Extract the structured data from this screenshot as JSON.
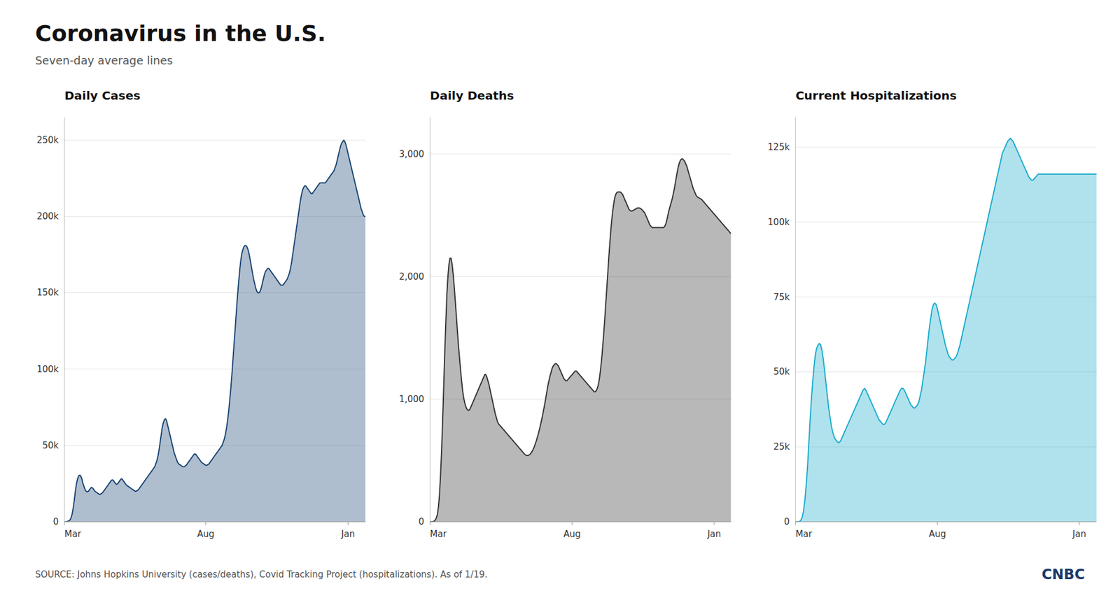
{
  "title": "Coronavirus in the U.S.",
  "subtitle": "Seven-day average lines",
  "source": "SOURCE: Johns Hopkins University (cases/deaths), Covid Tracking Project (hospitalizations). As of 1/19.",
  "logo": "CNBC",
  "chart_data": [
    {
      "type": "area",
      "title": "Daily Cases",
      "color": "#1a4472",
      "grid": true,
      "xlim": [
        0,
        277
      ],
      "xticks": [
        {
          "value": 0,
          "label": "Mar"
        },
        {
          "value": 130,
          "label": "Aug"
        },
        {
          "value": 261,
          "label": "Jan"
        }
      ],
      "ylim": [
        0,
        265000
      ],
      "yticks": [
        0,
        {
          "value": 50000,
          "label": "50k"
        },
        {
          "value": 100000,
          "label": "100k"
        },
        {
          "value": 150000,
          "label": "150k"
        },
        {
          "value": 200000,
          "label": "200k"
        },
        {
          "value": 250000,
          "label": "250k"
        }
      ],
      "values": [
        0,
        0,
        100,
        300,
        600,
        1200,
        2500,
        5000,
        9000,
        14000,
        20000,
        25000,
        28000,
        30000,
        30500,
        30000,
        28000,
        25000,
        23000,
        21000,
        20000,
        19500,
        20000,
        21000,
        22000,
        22500,
        22000,
        21000,
        20000,
        19500,
        19000,
        18500,
        18000,
        18000,
        18500,
        19000,
        20000,
        21000,
        22000,
        23000,
        24000,
        25000,
        26000,
        27000,
        27500,
        27000,
        26000,
        25000,
        24500,
        25000,
        26000,
        27000,
        28000,
        28000,
        27000,
        26000,
        25000,
        24000,
        23500,
        23000,
        22500,
        22000,
        21500,
        21000,
        20500,
        20000,
        20000,
        20500,
        21000,
        22000,
        23000,
        24000,
        25000,
        26000,
        27000,
        28000,
        29000,
        30000,
        31000,
        32000,
        33000,
        34000,
        35000,
        36000,
        38000,
        40000,
        43000,
        47000,
        52000,
        57000,
        62000,
        65000,
        67000,
        67500,
        66000,
        63000,
        60000,
        57000,
        54000,
        51000,
        48000,
        45000,
        43000,
        41000,
        39000,
        38000,
        37500,
        37000,
        36500,
        36000,
        36000,
        36500,
        37000,
        38000,
        39000,
        40000,
        41000,
        42000,
        43000,
        44000,
        44500,
        44000,
        43000,
        42000,
        41000,
        40000,
        39000,
        38500,
        38000,
        37500,
        37000,
        37000,
        37500,
        38000,
        39000,
        40000,
        41000,
        42000,
        43000,
        44000,
        45000,
        46000,
        47000,
        48000,
        49000,
        50000,
        52000,
        54000,
        57000,
        61000,
        66000,
        72000,
        79000,
        87000,
        96000,
        106000,
        116000,
        126000,
        136000,
        146000,
        155000,
        163000,
        170000,
        175000,
        178000,
        180000,
        181000,
        181000,
        180000,
        178000,
        175000,
        171000,
        167000,
        163000,
        159000,
        156000,
        153000,
        151000,
        150000,
        150000,
        151000,
        153000,
        156000,
        159000,
        162000,
        164000,
        165000,
        166000,
        166000,
        165000,
        164000,
        163000,
        162000,
        161000,
        160000,
        159000,
        158000,
        157000,
        156000,
        155000,
        155000,
        155000,
        156000,
        157000,
        158000,
        159000,
        161000,
        163000,
        166000,
        170000,
        175000,
        180000,
        185000,
        190000,
        195000,
        200000,
        205000,
        210000,
        214000,
        217000,
        219000,
        220000,
        220000,
        219000,
        218000,
        217000,
        216000,
        215000,
        215000,
        216000,
        217000,
        218000,
        219000,
        220000,
        221000,
        222000,
        222000,
        222000,
        222000,
        222000,
        222000,
        223000,
        224000,
        225000,
        226000,
        227000,
        228000,
        229000,
        230000,
        232000,
        234000,
        237000,
        240000,
        243000,
        246000,
        248000,
        249000,
        250000,
        249000,
        247000,
        244000,
        241000,
        238000,
        235000,
        232000,
        229000,
        226000,
        223000,
        220000,
        217000,
        214000,
        211000,
        208000,
        205000,
        203000,
        201000,
        200000,
        200000
      ]
    },
    {
      "type": "area",
      "title": "Daily Deaths",
      "color": "#333333",
      "grid": true,
      "xlim": [
        0,
        286
      ],
      "xticks": [
        {
          "value": 0,
          "label": "Mar"
        },
        {
          "value": 135,
          "label": "Aug"
        },
        {
          "value": 270,
          "label": "Jan"
        }
      ],
      "ylim": [
        0,
        3300
      ],
      "yticks": [
        0,
        {
          "value": 1000,
          "label": "1,000"
        },
        {
          "value": 2000,
          "label": "2,000"
        },
        {
          "value": 3000,
          "label": "3,000"
        }
      ],
      "values": [
        0,
        0,
        0,
        2,
        5,
        15,
        30,
        60,
        120,
        220,
        380,
        580,
        820,
        1100,
        1380,
        1620,
        1850,
        2000,
        2100,
        2150,
        2150,
        2100,
        2020,
        1920,
        1800,
        1680,
        1560,
        1440,
        1340,
        1240,
        1150,
        1070,
        1010,
        970,
        940,
        920,
        910,
        910,
        920,
        940,
        960,
        980,
        1000,
        1020,
        1040,
        1060,
        1080,
        1100,
        1120,
        1140,
        1160,
        1180,
        1200,
        1200,
        1180,
        1150,
        1120,
        1080,
        1040,
        1000,
        960,
        920,
        880,
        850,
        820,
        800,
        790,
        780,
        770,
        760,
        750,
        740,
        730,
        720,
        710,
        700,
        690,
        680,
        670,
        660,
        650,
        640,
        630,
        620,
        610,
        600,
        590,
        580,
        570,
        560,
        550,
        545,
        540,
        540,
        545,
        550,
        560,
        575,
        590,
        610,
        635,
        660,
        690,
        720,
        755,
        790,
        830,
        870,
        915,
        960,
        1010,
        1060,
        1110,
        1150,
        1190,
        1220,
        1250,
        1270,
        1280,
        1290,
        1290,
        1280,
        1270,
        1250,
        1230,
        1210,
        1190,
        1170,
        1160,
        1150,
        1150,
        1160,
        1170,
        1180,
        1190,
        1200,
        1210,
        1220,
        1230,
        1230,
        1220,
        1210,
        1200,
        1190,
        1180,
        1170,
        1160,
        1150,
        1140,
        1130,
        1120,
        1110,
        1100,
        1090,
        1080,
        1070,
        1060,
        1060,
        1070,
        1090,
        1120,
        1170,
        1240,
        1320,
        1420,
        1530,
        1650,
        1780,
        1910,
        2040,
        2170,
        2290,
        2400,
        2490,
        2560,
        2620,
        2660,
        2680,
        2690,
        2690,
        2690,
        2690,
        2680,
        2670,
        2650,
        2630,
        2610,
        2590,
        2570,
        2550,
        2540,
        2535,
        2535,
        2540,
        2545,
        2550,
        2555,
        2560,
        2560,
        2560,
        2555,
        2550,
        2540,
        2530,
        2520,
        2500,
        2480,
        2460,
        2440,
        2420,
        2410,
        2400,
        2400,
        2400,
        2400,
        2400,
        2400,
        2400,
        2400,
        2400,
        2400,
        2400,
        2400,
        2410,
        2430,
        2460,
        2500,
        2540,
        2570,
        2600,
        2630,
        2670,
        2710,
        2760,
        2810,
        2860,
        2900,
        2930,
        2950,
        2960,
        2960,
        2950,
        2940,
        2920,
        2900,
        2870,
        2840,
        2810,
        2780,
        2750,
        2720,
        2700,
        2680,
        2660,
        2650,
        2645,
        2640,
        2635,
        2630,
        2620,
        2610,
        2600,
        2590,
        2580,
        2570,
        2560,
        2550,
        2540,
        2530,
        2520,
        2510,
        2500,
        2490,
        2480,
        2470,
        2460,
        2450,
        2440,
        2430,
        2420,
        2410,
        2400,
        2390,
        2380,
        2370,
        2360,
        2350
      ]
    },
    {
      "type": "area",
      "title": "Current Hospitalizations",
      "color": "#1aabcc",
      "grid": true,
      "xlim": [
        0,
        227
      ],
      "xticks": [
        {
          "value": 0,
          "label": "Mar"
        },
        {
          "value": 107,
          "label": "Aug"
        },
        {
          "value": 214,
          "label": "Jan"
        }
      ],
      "ylim": [
        0,
        135000
      ],
      "yticks": [
        0,
        {
          "value": 25000,
          "label": "25k"
        },
        {
          "value": 50000,
          "label": "50k"
        },
        {
          "value": 75000,
          "label": "75k"
        },
        {
          "value": 100000,
          "label": "100k"
        },
        {
          "value": 125000,
          "label": "125k"
        }
      ],
      "values": [
        0,
        0,
        0,
        100,
        500,
        1500,
        3500,
        7000,
        12000,
        18000,
        26000,
        34000,
        41000,
        47000,
        52000,
        56000,
        58000,
        59000,
        59500,
        59000,
        57000,
        54000,
        50000,
        46000,
        42000,
        38000,
        35000,
        32000,
        30000,
        28500,
        27500,
        27000,
        26500,
        26500,
        27000,
        28000,
        29000,
        30000,
        31000,
        32000,
        33000,
        34000,
        35000,
        36000,
        37000,
        38000,
        39000,
        40000,
        41000,
        42000,
        43000,
        44000,
        44500,
        44000,
        43000,
        42000,
        41000,
        40000,
        39000,
        38000,
        37000,
        36000,
        35000,
        34000,
        33500,
        33000,
        32500,
        32500,
        33000,
        34000,
        35000,
        36000,
        37000,
        38000,
        39000,
        40000,
        41000,
        42000,
        43000,
        44000,
        44500,
        44500,
        44000,
        43000,
        42000,
        41000,
        40000,
        39000,
        38500,
        38000,
        38000,
        38500,
        39000,
        40000,
        42000,
        44000,
        47000,
        50000,
        53000,
        57000,
        61000,
        65000,
        68000,
        71000,
        72500,
        73000,
        72500,
        71000,
        69000,
        67000,
        65000,
        63000,
        61000,
        59000,
        57500,
        56000,
        55000,
        54500,
        54000,
        54000,
        54500,
        55000,
        56000,
        57500,
        59000,
        61000,
        63000,
        65000,
        67000,
        69000,
        71000,
        73000,
        75000,
        77000,
        79000,
        81000,
        83000,
        85000,
        87000,
        89000,
        91000,
        93000,
        95000,
        97000,
        99000,
        101000,
        103000,
        105000,
        107000,
        109000,
        111000,
        113000,
        115000,
        117000,
        119000,
        121000,
        123000,
        124000,
        125000,
        126000,
        127000,
        127500,
        128000,
        127500,
        127000,
        126000,
        125000,
        124000,
        123000,
        122000,
        121000,
        120000,
        119000,
        118000,
        117000,
        116000,
        115000,
        114500,
        114000,
        114000,
        114500,
        115000,
        115500,
        116000,
        116000,
        116000,
        116000,
        116000,
        116000,
        116000,
        116000,
        116000,
        116000,
        116000,
        116000,
        116000,
        116000,
        116000,
        116000,
        116000,
        116000,
        116000,
        116000,
        116000,
        116000,
        116000,
        116000,
        116000,
        116000,
        116000,
        116000,
        116000,
        116000,
        116000,
        116000,
        116000,
        116000,
        116000,
        116000,
        116000,
        116000,
        116000,
        116000,
        116000,
        116000,
        116000,
        116000,
        116000
      ]
    }
  ]
}
